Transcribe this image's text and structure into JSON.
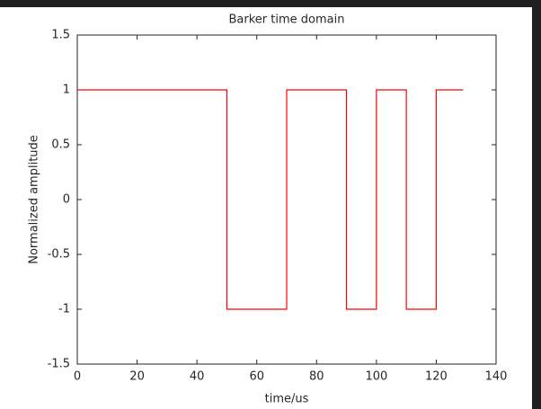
{
  "chart_data": {
    "type": "line",
    "title": "Barker time domain",
    "x_label": "time/us",
    "y_label": "Normalized amplitude",
    "x": [
      0,
      50,
      50,
      70,
      70,
      90,
      90,
      100,
      100,
      110,
      110,
      120,
      120,
      129
    ],
    "series": [
      {
        "name": "Barker",
        "color": "#ff0000",
        "values": [
          1,
          1,
          -1,
          -1,
          1,
          1,
          -1,
          -1,
          1,
          1,
          -1,
          -1,
          1,
          1
        ]
      }
    ],
    "xlim": [
      0,
      140
    ],
    "xticks": [
      0,
      20,
      40,
      60,
      80,
      100,
      120,
      140
    ],
    "ylim": [
      -1.5,
      1.5
    ],
    "yticks": [
      -1.5,
      -1,
      -0.5,
      0,
      0.5,
      1,
      1.5
    ]
  }
}
